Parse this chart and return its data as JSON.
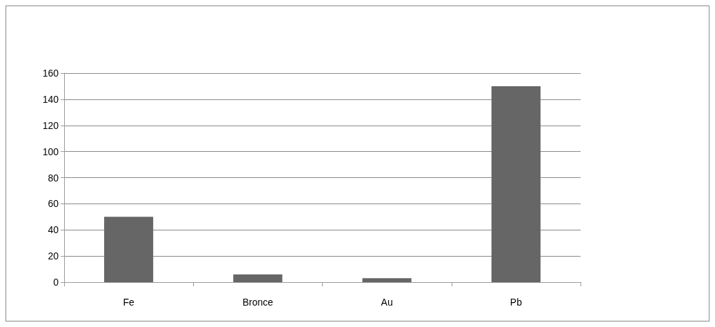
{
  "chart_data": {
    "type": "bar",
    "categories": [
      "Fe",
      "Bronce",
      "Au",
      "Pb"
    ],
    "values": [
      50,
      6,
      3,
      150
    ],
    "color": "#666666",
    "ylim": [
      0,
      160
    ],
    "yticks": [
      0,
      20,
      40,
      60,
      80,
      100,
      120,
      140,
      160
    ],
    "grid": "y"
  }
}
